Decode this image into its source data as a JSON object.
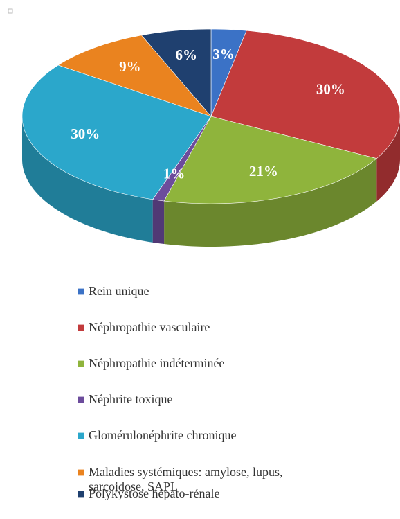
{
  "chart_data": {
    "type": "pie",
    "categories": [
      "Rein unique",
      "Néphropathie vasculaire",
      "Néphropathie indéterminée",
      "Néphrite toxique",
      "Glomérulonéphrite chronique",
      "Maladies systémiques: amylose, lupus, sarcoidose, SAPL",
      "Polykystose hépato-rénale"
    ],
    "values": [
      3,
      30,
      21,
      1,
      30,
      9,
      6
    ],
    "value_labels": [
      "3%",
      "30%",
      "21%",
      "1%",
      "30%",
      "9%",
      "6%"
    ],
    "colors": [
      "#3b72c6",
      "#c23b3c",
      "#8fb43c",
      "#6c4c9c",
      "#2ba7cb",
      "#ea831f",
      "#1f406f"
    ],
    "legend": "bottom"
  }
}
